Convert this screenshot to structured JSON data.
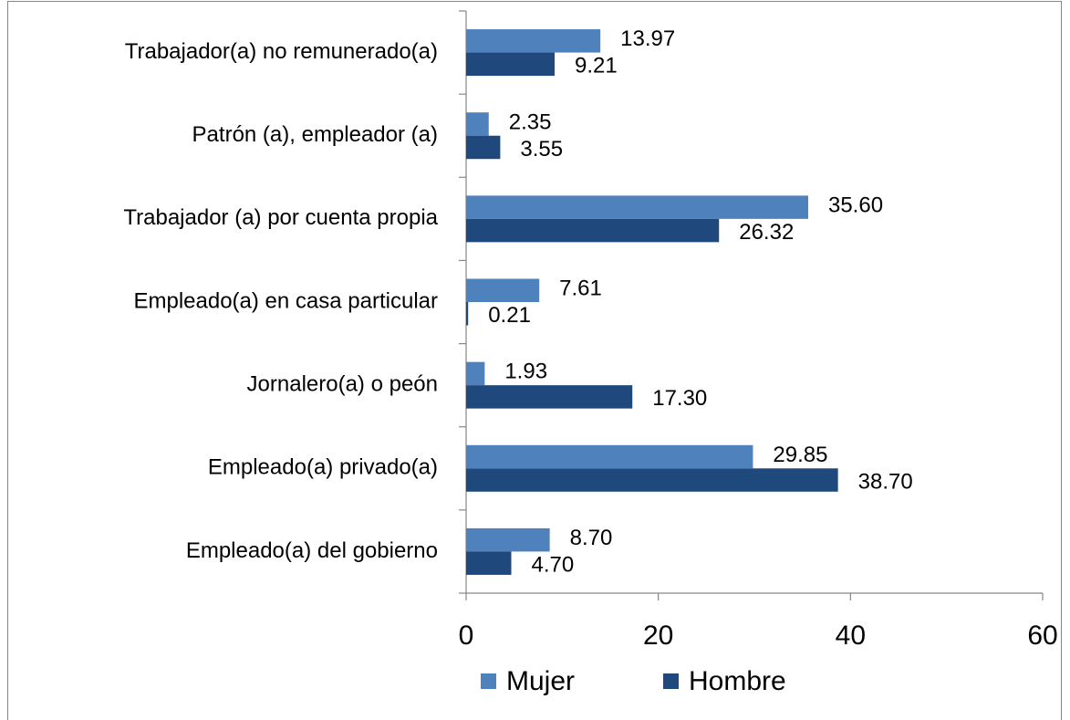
{
  "chart_data": {
    "type": "bar",
    "orientation": "horizontal",
    "categories": [
      "Trabajador(a) no remunerado(a)",
      "Patrón (a), empleador (a)",
      "Trabajador (a) por cuenta propia",
      "Empleado(a) en casa particular",
      "Jornalero(a) o peón",
      "Empleado(a) privado(a)",
      "Empleado(a) del gobierno"
    ],
    "series": [
      {
        "name": "Mujer",
        "color": "#4f81bd",
        "values": [
          13.97,
          2.35,
          35.6,
          7.61,
          1.93,
          29.85,
          8.7
        ],
        "value_labels": [
          "13.97",
          "2.35",
          "35.60",
          "7.61",
          "1.93",
          "29.85",
          "8.70"
        ]
      },
      {
        "name": "Hombre",
        "color": "#1f497d",
        "values": [
          9.21,
          3.55,
          26.32,
          0.21,
          17.3,
          38.7,
          4.7
        ],
        "value_labels": [
          "9.21",
          "3.55",
          "26.32",
          "0.21",
          "17.30",
          "38.70",
          "4.70"
        ]
      }
    ],
    "xlim": [
      0,
      60
    ],
    "xticks": [
      0,
      20,
      40,
      60
    ],
    "legend": "bottom"
  }
}
